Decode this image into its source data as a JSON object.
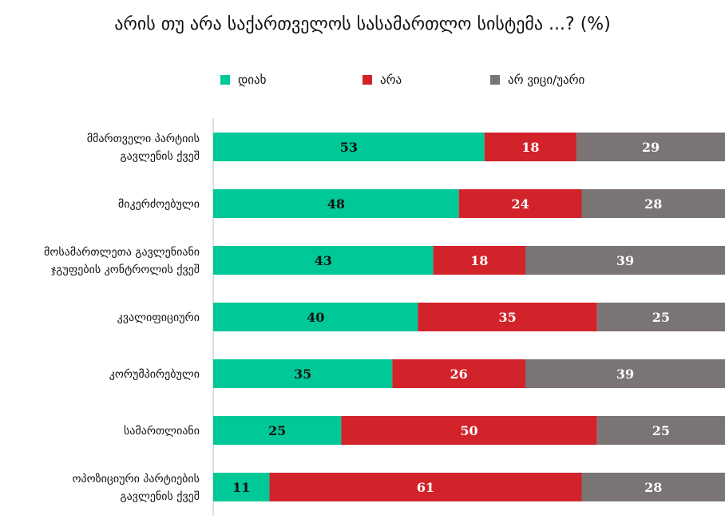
{
  "chart_data": {
    "type": "bar",
    "orientation": "horizontal",
    "stacked": true,
    "title": "არის თუ არა საქართველოს სასამართლო სისტემა ...? (%)",
    "categories": [
      "მმართველი პარტიის გავლენის ქვეშ",
      "მიკერძოებული",
      "მოსამართლეთა გავლენიანი ჯგუფების კონტროლის ქვეშ",
      "კვალიფიციური",
      "კორუმპირებული",
      "სამართლიანი",
      "ოპოზიციური პარტიების გავლენის ქვეშ"
    ],
    "category_lines": [
      [
        "მმართველი პარტიის",
        "გავლენის ქვეშ"
      ],
      [
        "მიკერძოებული"
      ],
      [
        "მოსამართლეთა გავლენიანი",
        "ჯგუფების კონტროლის ქვეშ"
      ],
      [
        "კვალიფიციური"
      ],
      [
        "კორუმპირებული"
      ],
      [
        "სამართლიანი"
      ],
      [
        "ოპოზიციური პარტიების",
        "გავლენის ქვეშ"
      ]
    ],
    "series": [
      {
        "name": "დიახ",
        "color": "#00C896",
        "label_color": "#111111",
        "values": [
          53,
          48,
          43,
          40,
          35,
          25,
          11
        ]
      },
      {
        "name": "არა",
        "color": "#D2232A",
        "label_color": "#ffffff",
        "values": [
          18,
          24,
          18,
          35,
          26,
          50,
          61
        ]
      },
      {
        "name": "არ ვიცი/უარი",
        "color": "#7A7474",
        "label_color": "#ffffff",
        "values": [
          29,
          28,
          39,
          25,
          39,
          25,
          28
        ]
      }
    ],
    "xlim": [
      0,
      100
    ],
    "legend_position": "top",
    "grid": false
  }
}
